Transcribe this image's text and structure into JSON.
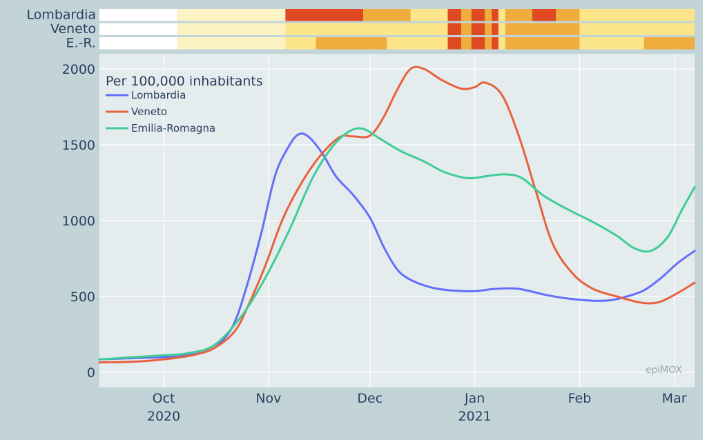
{
  "chart_data": {
    "type": "line",
    "legend_title": "Per 100,000 inhabitants",
    "legend_position": "top-left",
    "watermark": "epiMOX",
    "x_range": [
      "2020-09-12",
      "2021-03-07"
    ],
    "ylim": [
      -100,
      2100
    ],
    "y_ticks": [
      0,
      500,
      1000,
      1500,
      2000
    ],
    "x_ticks": [
      {
        "date": "2020-10-01",
        "label": "Oct",
        "sublabel": "2020"
      },
      {
        "date": "2020-11-01",
        "label": "Nov",
        "sublabel": ""
      },
      {
        "date": "2020-12-01",
        "label": "Dec",
        "sublabel": ""
      },
      {
        "date": "2021-01-01",
        "label": "Jan",
        "sublabel": "2021"
      },
      {
        "date": "2021-02-01",
        "label": "Feb",
        "sublabel": ""
      },
      {
        "date": "2021-03-01",
        "label": "Mar",
        "sublabel": ""
      }
    ],
    "grid": true,
    "series": [
      {
        "name": "Lombardia",
        "color": "#636efa",
        "points": [
          [
            "2020-09-12",
            85
          ],
          [
            "2020-09-20",
            92
          ],
          [
            "2020-10-01",
            100
          ],
          [
            "2020-10-08",
            112
          ],
          [
            "2020-10-14",
            140
          ],
          [
            "2020-10-18",
            200
          ],
          [
            "2020-10-22",
            330
          ],
          [
            "2020-10-26",
            600
          ],
          [
            "2020-10-30",
            930
          ],
          [
            "2020-11-03",
            1300
          ],
          [
            "2020-11-07",
            1490
          ],
          [
            "2020-11-10",
            1570
          ],
          [
            "2020-11-13",
            1550
          ],
          [
            "2020-11-17",
            1440
          ],
          [
            "2020-11-21",
            1290
          ],
          [
            "2020-11-26",
            1170
          ],
          [
            "2020-12-01",
            1020
          ],
          [
            "2020-12-05",
            830
          ],
          [
            "2020-12-09",
            680
          ],
          [
            "2020-12-13",
            610
          ],
          [
            "2020-12-19",
            560
          ],
          [
            "2020-12-25",
            540
          ],
          [
            "2021-01-01",
            535
          ],
          [
            "2021-01-07",
            550
          ],
          [
            "2021-01-14",
            550
          ],
          [
            "2021-01-22",
            510
          ],
          [
            "2021-01-29",
            485
          ],
          [
            "2021-02-05",
            472
          ],
          [
            "2021-02-10",
            475
          ],
          [
            "2021-02-15",
            500
          ],
          [
            "2021-02-20",
            540
          ],
          [
            "2021-02-25",
            620
          ],
          [
            "2021-03-02",
            720
          ],
          [
            "2021-03-07",
            800
          ]
        ]
      },
      {
        "name": "Veneto",
        "color": "#e8603c",
        "points": [
          [
            "2020-09-12",
            65
          ],
          [
            "2020-09-22",
            70
          ],
          [
            "2020-10-01",
            85
          ],
          [
            "2020-10-10",
            115
          ],
          [
            "2020-10-16",
            160
          ],
          [
            "2020-10-22",
            270
          ],
          [
            "2020-10-26",
            440
          ],
          [
            "2020-10-31",
            700
          ],
          [
            "2020-11-05",
            1000
          ],
          [
            "2020-11-10",
            1220
          ],
          [
            "2020-11-16",
            1420
          ],
          [
            "2020-11-22",
            1550
          ],
          [
            "2020-11-26",
            1555
          ],
          [
            "2020-12-01",
            1560
          ],
          [
            "2020-12-05",
            1680
          ],
          [
            "2020-12-09",
            1860
          ],
          [
            "2020-12-13",
            2000
          ],
          [
            "2020-12-17",
            2000
          ],
          [
            "2020-12-22",
            1930
          ],
          [
            "2020-12-28",
            1870
          ],
          [
            "2021-01-01",
            1880
          ],
          [
            "2021-01-04",
            1910
          ],
          [
            "2021-01-09",
            1830
          ],
          [
            "2021-01-14",
            1560
          ],
          [
            "2021-01-19",
            1200
          ],
          [
            "2021-01-24",
            850
          ],
          [
            "2021-01-30",
            650
          ],
          [
            "2021-02-05",
            550
          ],
          [
            "2021-02-12",
            500
          ],
          [
            "2021-02-19",
            460
          ],
          [
            "2021-02-24",
            460
          ],
          [
            "2021-03-01",
            510
          ],
          [
            "2021-03-07",
            590
          ]
        ]
      },
      {
        "name": "Emilia-Romagna",
        "color": "#3ecc96",
        "points": [
          [
            "2020-09-12",
            85
          ],
          [
            "2020-09-22",
            100
          ],
          [
            "2020-10-01",
            112
          ],
          [
            "2020-10-08",
            125
          ],
          [
            "2020-10-16",
            180
          ],
          [
            "2020-10-24",
            370
          ],
          [
            "2020-10-31",
            620
          ],
          [
            "2020-11-07",
            930
          ],
          [
            "2020-11-14",
            1280
          ],
          [
            "2020-11-20",
            1490
          ],
          [
            "2020-11-25",
            1590
          ],
          [
            "2020-11-29",
            1605
          ],
          [
            "2020-12-04",
            1540
          ],
          [
            "2020-12-10",
            1460
          ],
          [
            "2020-12-17",
            1390
          ],
          [
            "2020-12-23",
            1320
          ],
          [
            "2020-12-30",
            1280
          ],
          [
            "2021-01-05",
            1295
          ],
          [
            "2021-01-10",
            1305
          ],
          [
            "2021-01-15",
            1280
          ],
          [
            "2021-01-21",
            1170
          ],
          [
            "2021-01-28",
            1080
          ],
          [
            "2021-02-05",
            990
          ],
          [
            "2021-02-12",
            900
          ],
          [
            "2021-02-17",
            820
          ],
          [
            "2021-02-22",
            800
          ],
          [
            "2021-02-27",
            890
          ],
          [
            "2021-03-03",
            1060
          ],
          [
            "2021-03-07",
            1220
          ]
        ]
      }
    ]
  },
  "restriction_strip": {
    "colors": {
      "white": "#ffffff",
      "yellow": "#fde68a",
      "paleyellow": "#fdf2c4",
      "orange": "#f0ad3e",
      "red": "#e04a22"
    },
    "rows": [
      {
        "label": "Lombardia",
        "segments": [
          [
            "2020-09-12",
            "2020-10-05",
            "white"
          ],
          [
            "2020-10-05",
            "2020-11-06",
            "paleyellow"
          ],
          [
            "2020-11-06",
            "2020-11-29",
            "red"
          ],
          [
            "2020-11-29",
            "2020-12-13",
            "orange"
          ],
          [
            "2020-12-13",
            "2020-12-24",
            "yellow"
          ],
          [
            "2020-12-24",
            "2020-12-28",
            "red"
          ],
          [
            "2020-12-28",
            "2020-12-31",
            "orange"
          ],
          [
            "2020-12-31",
            "2021-01-04",
            "red"
          ],
          [
            "2021-01-04",
            "2021-01-06",
            "orange"
          ],
          [
            "2021-01-06",
            "2021-01-08",
            "red"
          ],
          [
            "2021-01-08",
            "2021-01-10",
            "yellow"
          ],
          [
            "2021-01-10",
            "2021-01-18",
            "orange"
          ],
          [
            "2021-01-18",
            "2021-01-25",
            "red"
          ],
          [
            "2021-01-25",
            "2021-02-01",
            "orange"
          ],
          [
            "2021-02-01",
            "2021-03-07",
            "yellow"
          ]
        ]
      },
      {
        "label": "Veneto",
        "segments": [
          [
            "2020-09-12",
            "2020-10-05",
            "white"
          ],
          [
            "2020-10-05",
            "2020-11-06",
            "paleyellow"
          ],
          [
            "2020-11-06",
            "2020-12-24",
            "yellow"
          ],
          [
            "2020-12-24",
            "2020-12-28",
            "red"
          ],
          [
            "2020-12-28",
            "2020-12-31",
            "orange"
          ],
          [
            "2020-12-31",
            "2021-01-04",
            "red"
          ],
          [
            "2021-01-04",
            "2021-01-06",
            "orange"
          ],
          [
            "2021-01-06",
            "2021-01-08",
            "red"
          ],
          [
            "2021-01-08",
            "2021-01-10",
            "yellow"
          ],
          [
            "2021-01-10",
            "2021-02-01",
            "orange"
          ],
          [
            "2021-02-01",
            "2021-03-07",
            "yellow"
          ]
        ]
      },
      {
        "label": "E.-R.",
        "segments": [
          [
            "2020-09-12",
            "2020-10-05",
            "white"
          ],
          [
            "2020-10-05",
            "2020-11-06",
            "paleyellow"
          ],
          [
            "2020-11-06",
            "2020-11-15",
            "yellow"
          ],
          [
            "2020-11-15",
            "2020-12-06",
            "orange"
          ],
          [
            "2020-12-06",
            "2020-12-24",
            "yellow"
          ],
          [
            "2020-12-24",
            "2020-12-28",
            "red"
          ],
          [
            "2020-12-28",
            "2020-12-31",
            "orange"
          ],
          [
            "2020-12-31",
            "2021-01-04",
            "red"
          ],
          [
            "2021-01-04",
            "2021-01-06",
            "orange"
          ],
          [
            "2021-01-06",
            "2021-01-08",
            "red"
          ],
          [
            "2021-01-08",
            "2021-01-10",
            "yellow"
          ],
          [
            "2021-01-10",
            "2021-02-01",
            "orange"
          ],
          [
            "2021-02-01",
            "2021-02-20",
            "yellow"
          ],
          [
            "2021-02-20",
            "2021-03-07",
            "orange"
          ]
        ]
      }
    ]
  }
}
